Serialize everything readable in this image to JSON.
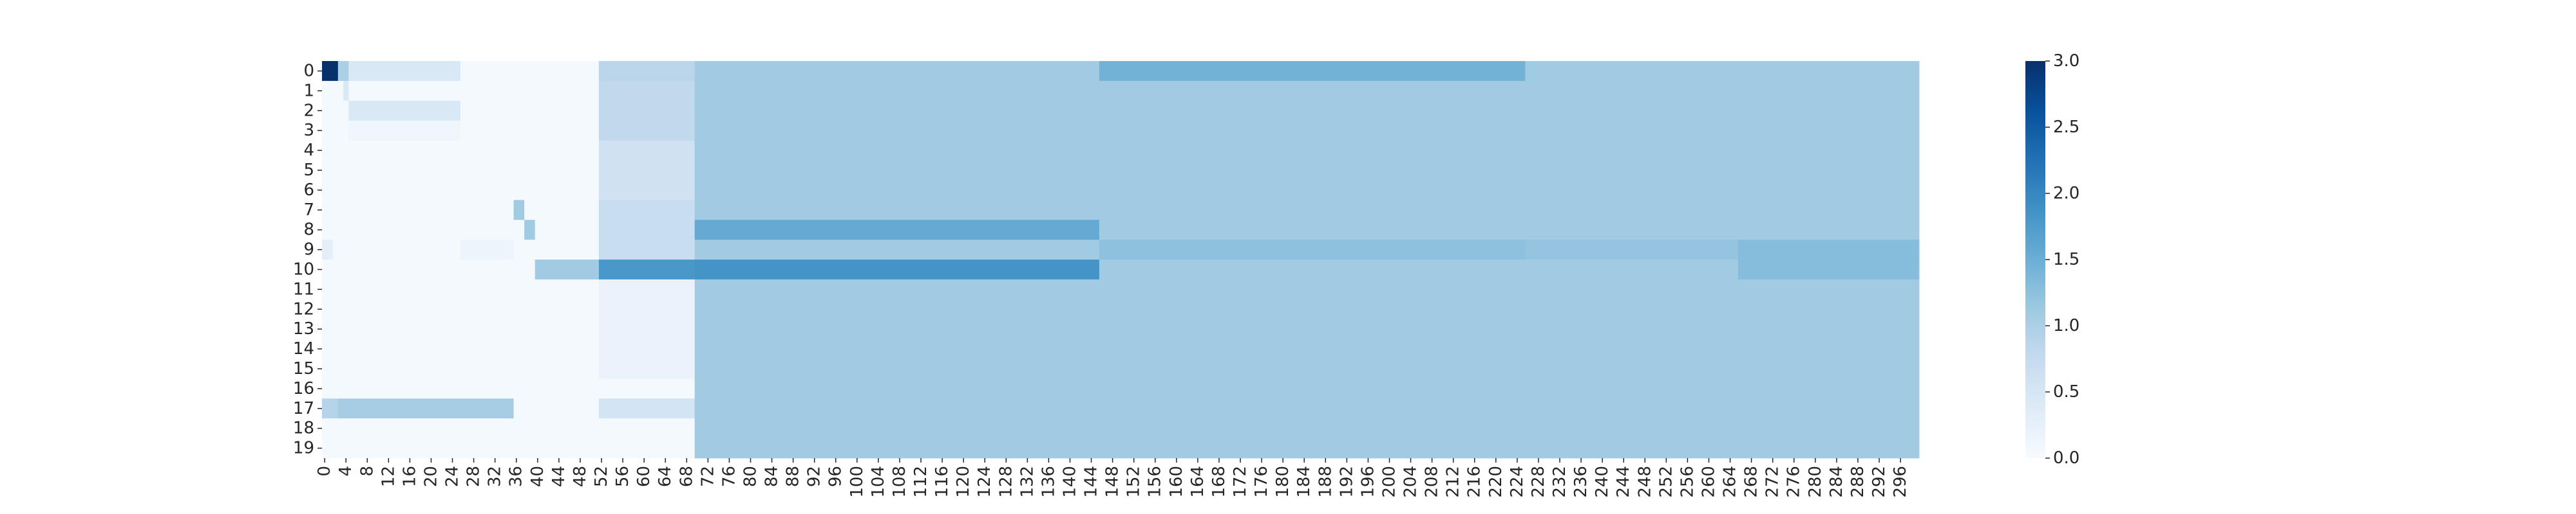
{
  "chart_data": {
    "type": "heatmap",
    "colormap": "Blues",
    "colormap_stops": [
      "#f7fbff",
      "#deebf7",
      "#c6dbef",
      "#9ecae1",
      "#6baed6",
      "#4292c6",
      "#2171b5",
      "#08519c",
      "#08306b"
    ],
    "n_rows": 20,
    "n_cols": 300,
    "vmin": 0,
    "vmax": 3,
    "row_labels": [
      "0",
      "1",
      "2",
      "3",
      "4",
      "5",
      "6",
      "7",
      "8",
      "9",
      "10",
      "11",
      "12",
      "13",
      "14",
      "15",
      "16",
      "17",
      "18",
      "19"
    ],
    "x_tick_labels": [
      "0",
      "4",
      "8",
      "12",
      "16",
      "20",
      "24",
      "28",
      "32",
      "36",
      "40",
      "44",
      "48",
      "52",
      "56",
      "60",
      "64",
      "68",
      "72",
      "76",
      "80",
      "84",
      "88",
      "92",
      "96",
      "100",
      "104",
      "108",
      "112",
      "116",
      "120",
      "124",
      "128",
      "132",
      "136",
      "140",
      "144",
      "148",
      "152",
      "156",
      "160",
      "164",
      "168",
      "172",
      "176",
      "180",
      "184",
      "188",
      "192",
      "196",
      "200",
      "204",
      "208",
      "212",
      "216",
      "220",
      "224",
      "228",
      "232",
      "236",
      "240",
      "244",
      "248",
      "252",
      "256",
      "260",
      "264",
      "268",
      "272",
      "276",
      "280",
      "284",
      "288",
      "292",
      "296"
    ],
    "colorbar_ticks": [
      "0.0",
      "0.5",
      "1.0",
      "1.5",
      "2.0",
      "2.5",
      "3.0"
    ],
    "colorbar_values": [
      0,
      0.5,
      1.0,
      1.5,
      2.0,
      2.5,
      3.0
    ],
    "default_value": 0.05,
    "regions": [
      {
        "rows": [
          0,
          19
        ],
        "cols": [
          70,
          299
        ],
        "value": 1.1
      },
      {
        "rows": [
          0,
          0
        ],
        "cols": [
          52,
          69
        ],
        "value": 0.85
      },
      {
        "rows": [
          1,
          3
        ],
        "cols": [
          52,
          69
        ],
        "value": 0.8
      },
      {
        "rows": [
          4,
          6
        ],
        "cols": [
          52,
          69
        ],
        "value": 0.6
      },
      {
        "rows": [
          7,
          9
        ],
        "cols": [
          52,
          69
        ],
        "value": 0.7
      },
      {
        "rows": [
          10,
          10
        ],
        "cols": [
          52,
          69
        ],
        "value": 1.8
      },
      {
        "rows": [
          11,
          15
        ],
        "cols": [
          52,
          69
        ],
        "value": 0.2
      },
      {
        "rows": [
          17,
          17
        ],
        "cols": [
          52,
          69
        ],
        "value": 0.55
      },
      {
        "rows": [
          0,
          0
        ],
        "cols": [
          0,
          2
        ],
        "value": 3.0
      },
      {
        "rows": [
          0,
          0
        ],
        "cols": [
          3,
          4
        ],
        "value": 1.0
      },
      {
        "rows": [
          0,
          0
        ],
        "cols": [
          5,
          25
        ],
        "value": 0.45
      },
      {
        "rows": [
          1,
          1
        ],
        "cols": [
          4,
          4
        ],
        "value": 0.45
      },
      {
        "rows": [
          2,
          2
        ],
        "cols": [
          5,
          25
        ],
        "value": 0.45
      },
      {
        "rows": [
          3,
          3
        ],
        "cols": [
          5,
          25
        ],
        "value": 0.12
      },
      {
        "rows": [
          7,
          7
        ],
        "cols": [
          36,
          37
        ],
        "value": 1.1
      },
      {
        "rows": [
          8,
          8
        ],
        "cols": [
          38,
          39
        ],
        "value": 1.1
      },
      {
        "rows": [
          9,
          9
        ],
        "cols": [
          0,
          1
        ],
        "value": 0.3
      },
      {
        "rows": [
          9,
          9
        ],
        "cols": [
          26,
          35
        ],
        "value": 0.15
      },
      {
        "rows": [
          10,
          10
        ],
        "cols": [
          40,
          51
        ],
        "value": 1.1
      },
      {
        "rows": [
          17,
          17
        ],
        "cols": [
          0,
          2
        ],
        "value": 0.9
      },
      {
        "rows": [
          17,
          17
        ],
        "cols": [
          3,
          35
        ],
        "value": 1.05
      },
      {
        "rows": [
          0,
          0
        ],
        "cols": [
          146,
          225
        ],
        "value": 1.45
      },
      {
        "rows": [
          8,
          8
        ],
        "cols": [
          70,
          145
        ],
        "value": 1.55
      },
      {
        "rows": [
          10,
          10
        ],
        "cols": [
          70,
          145
        ],
        "value": 1.85
      },
      {
        "rows": [
          9,
          9
        ],
        "cols": [
          146,
          225
        ],
        "value": 1.25
      },
      {
        "rows": [
          9,
          9
        ],
        "cols": [
          226,
          265
        ],
        "value": 1.2
      },
      {
        "rows": [
          9,
          10
        ],
        "cols": [
          266,
          299
        ],
        "value": 1.3
      }
    ],
    "grid": false,
    "colorbar_position": "right"
  }
}
